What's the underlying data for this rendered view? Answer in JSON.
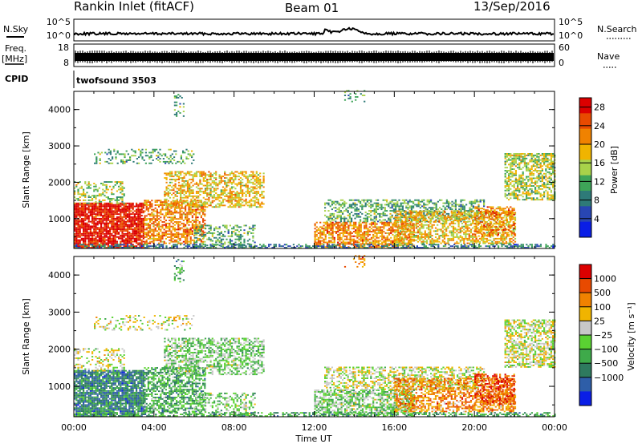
{
  "header": {
    "title": "Rankin Inlet (fitACF)",
    "beam": "Beam 01",
    "date": "13/Sep/2016"
  },
  "top_panels": {
    "nsky_label": "N.Sky",
    "nsky_ticks": [
      "10^5",
      "10^0"
    ],
    "nsearch_label": "N.Search",
    "nsearch_ticks": [
      "10^5",
      "10^0"
    ],
    "freq_label_1": "Freq.",
    "freq_label_2": "[MHz]",
    "freq_ticks": [
      "18",
      "8"
    ],
    "nave_label": "Nave",
    "nave_ticks": [
      "60",
      "0"
    ],
    "cpid_label": "CPID",
    "cpid_value": "twofsound 3503"
  },
  "chart_data": [
    {
      "type": "heatmap",
      "ylabel": "Slant Range [km]",
      "xlabel": "",
      "y_ticks": [
        "1000",
        "2000",
        "3000",
        "4000"
      ],
      "y_tick_values": [
        1000,
        2000,
        3000,
        4000
      ],
      "ylim": [
        180,
        4500
      ],
      "xlim_hours": [
        0,
        24
      ],
      "colorbar": {
        "label": "Power [dB]",
        "ticks": [
          "4",
          "8",
          "12",
          "16",
          "20",
          "24",
          "28"
        ],
        "tick_values": [
          4,
          8,
          12,
          16,
          20,
          24,
          28
        ],
        "range": [
          0,
          30
        ],
        "colors": [
          "#0a1ee6",
          "#2846b4",
          "#2e7a78",
          "#3ea458",
          "#a8d24a",
          "#f0b400",
          "#f08200",
          "#e84a00",
          "#dc0000"
        ]
      }
    },
    {
      "type": "heatmap",
      "ylabel": "Slant Range [km]",
      "xlabel": "Time UT",
      "x_ticks": [
        "00:00",
        "04:00",
        "08:00",
        "12:00",
        "16:00",
        "20:00",
        "00:00"
      ],
      "x_tick_hours": [
        0,
        4,
        8,
        12,
        16,
        20,
        24
      ],
      "y_ticks": [
        "1000",
        "2000",
        "3000",
        "4000"
      ],
      "y_tick_values": [
        1000,
        2000,
        3000,
        4000
      ],
      "ylim": [
        180,
        4500
      ],
      "xlim_hours": [
        0,
        24
      ],
      "colorbar": {
        "label": "Velocity  [m s⁻¹]",
        "ticks": [
          "1000",
          "500",
          "100",
          "25",
          "−25",
          "−100",
          "−500",
          "−1000"
        ],
        "tick_values": [
          1000,
          500,
          100,
          25,
          -25,
          -100,
          -500,
          -1000
        ],
        "colors": [
          "#0a1ee6",
          "#2e5ea8",
          "#2e7a5e",
          "#3eaa4a",
          "#5ad232",
          "#c8c8c8",
          "#f0b400",
          "#f08200",
          "#e84a00",
          "#dc0000"
        ]
      }
    }
  ]
}
